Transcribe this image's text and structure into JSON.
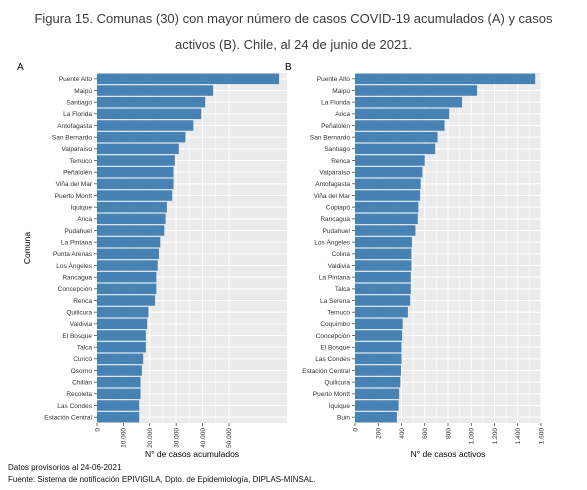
{
  "figure": {
    "title_line1": "Figura 15. Comunas (30) con mayor número de casos COVID-19 acumulados (A) y casos",
    "title_line2": "activos (B). Chile, al 24 de junio de 2021."
  },
  "footer": {
    "line1": "Datos provisorios al 24-06-2021",
    "line2": "Fuente: Sistema de notificación EPIVIGILA, Dpto. de Epidemiología, DIPLAS-MINSAL."
  },
  "style": {
    "bar_color": "#4682B4",
    "panel_bg": "#EBEBEB",
    "grid_color": "#FFFFFF"
  },
  "chart_data": [
    {
      "panel": "A",
      "type": "bar",
      "orientation": "horizontal",
      "ylabel": "Comuna",
      "xlabel": "N° de casos acumulados",
      "xlim": [
        0,
        72000
      ],
      "xticks": [
        0,
        10000,
        20000,
        30000,
        40000,
        50000
      ],
      "xtick_labels": [
        "0",
        "10.000",
        "20.000",
        "30.000",
        "40.000",
        "50.000"
      ],
      "grid": true,
      "categories": [
        "Puente Alto",
        "Maipú",
        "Santiago",
        "La Florida",
        "Antofagasta",
        "San Bernardo",
        "Valparaíso",
        "Temuco",
        "Peñalolén",
        "Viña del Mar",
        "Puerto Montt",
        "Iquique",
        "Arica",
        "Pudahuel",
        "La Pintana",
        "Punta Arenas",
        "Los Ángeles",
        "Rancagua",
        "Concepción",
        "Renca",
        "Quilicura",
        "Valdivia",
        "El Bosque",
        "Talca",
        "Curicó",
        "Osorno",
        "Chillán",
        "Recoleta",
        "Las Condes",
        "Estación Central"
      ],
      "values": [
        69000,
        44000,
        41000,
        39500,
        36500,
        33500,
        31000,
        29500,
        29000,
        29000,
        28500,
        26500,
        26000,
        25500,
        24000,
        23500,
        23000,
        22500,
        22500,
        22000,
        19500,
        19000,
        18500,
        18500,
        17500,
        17000,
        16500,
        16500,
        16000,
        16000
      ]
    },
    {
      "panel": "B",
      "type": "bar",
      "orientation": "horizontal",
      "ylabel": "",
      "xlabel": "N° de casos activos",
      "xlim": [
        0,
        1600
      ],
      "xticks": [
        0,
        200,
        400,
        600,
        800,
        1000,
        1200,
        1400,
        1600
      ],
      "xtick_labels": [
        "0",
        "200",
        "400",
        "600",
        "800",
        "1.000",
        "1.200",
        "1.400",
        "1.600"
      ],
      "grid": true,
      "categories": [
        "Puente Alto",
        "Maipú",
        "La Florida",
        "Arica",
        "Peñalolén",
        "San Bernardo",
        "Santiago",
        "Renca",
        "Valparaíso",
        "Antofagasta",
        "Viña del Mar",
        "Copiapó",
        "Rancagua",
        "Pudahuel",
        "Los Ángeles",
        "Colina",
        "Valdivia",
        "La Pintana",
        "Talca",
        "La Serena",
        "Temuco",
        "Coquimbo",
        "Concepción",
        "El Bosque",
        "Las Condes",
        "Estación Central",
        "Quilicura",
        "Puerto Montt",
        "Iquique",
        "Buin"
      ],
      "values": [
        1550,
        1050,
        920,
        810,
        770,
        710,
        690,
        600,
        580,
        565,
        560,
        545,
        540,
        520,
        490,
        485,
        485,
        480,
        480,
        475,
        455,
        410,
        405,
        400,
        400,
        395,
        390,
        380,
        375,
        360
      ]
    }
  ]
}
